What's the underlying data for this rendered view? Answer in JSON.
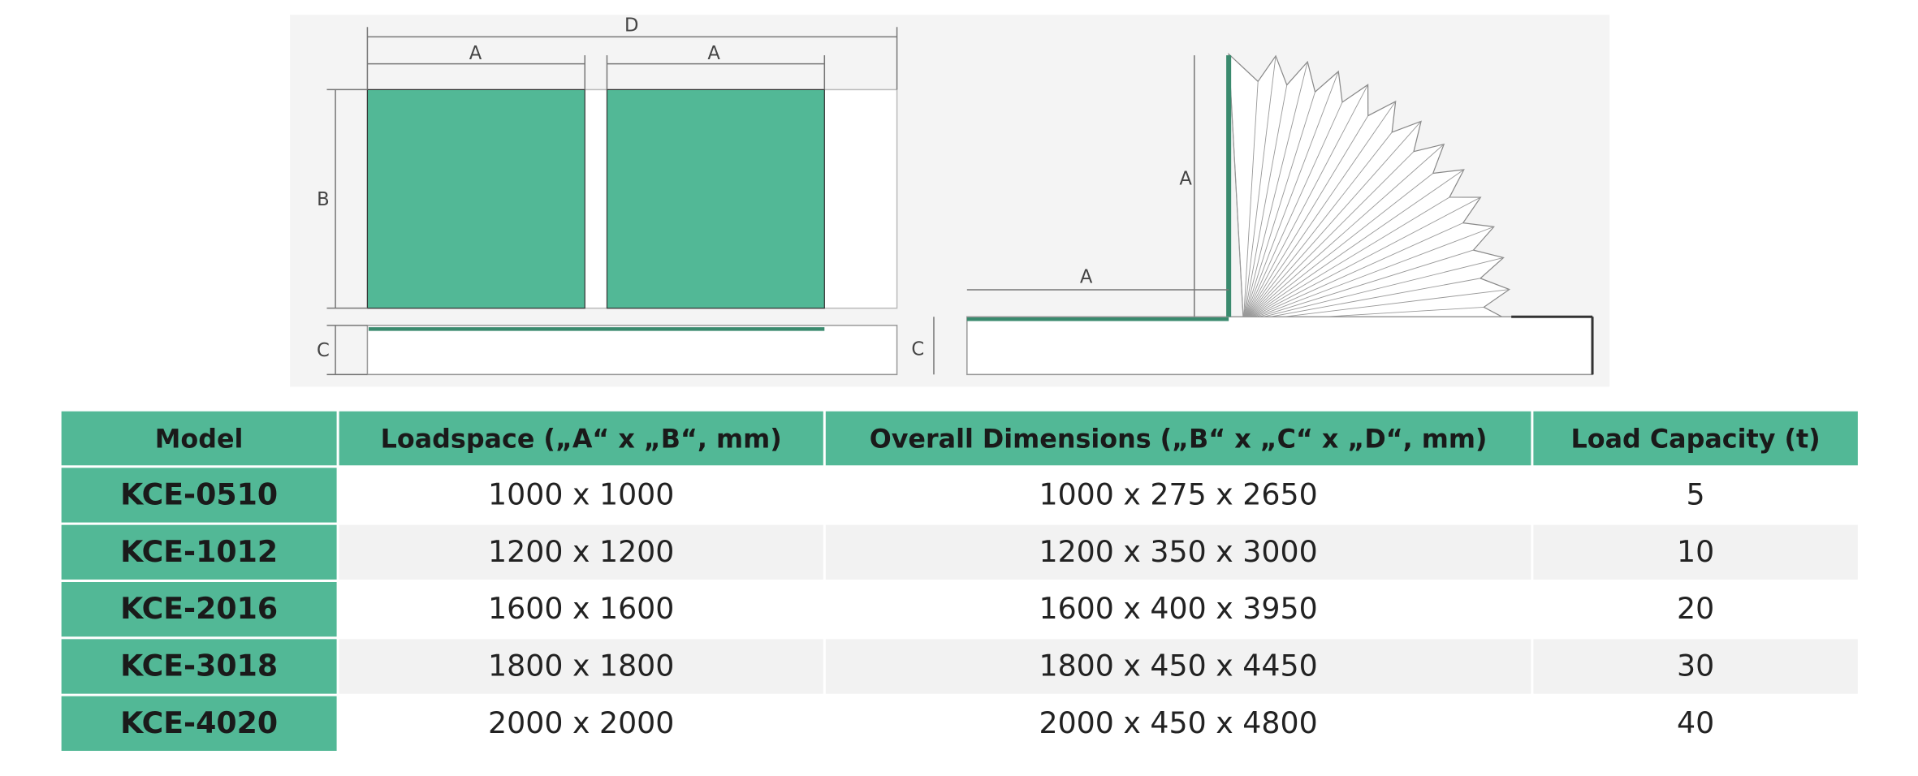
{
  "diagram": {
    "left": {
      "labels": {
        "d": "D",
        "a1": "A",
        "a2": "A",
        "b": "B",
        "c": "C"
      }
    },
    "right": {
      "labels": {
        "a_vertical": "A",
        "a_horizontal": "A",
        "c": "C"
      }
    }
  },
  "table": {
    "header": [
      "Model",
      "Loadspace („A“ x „B“, mm)",
      "Overall Dimensions („B“ x „C“ x „D“, mm)",
      "Load Capacity (t)"
    ],
    "rows": [
      [
        "KCE-0510",
        "1000 x 1000",
        "1000 x 275 x 2650",
        "5"
      ],
      [
        "KCE-1012",
        "1200 x 1200",
        "1200 x 350 x 3000",
        "10"
      ],
      [
        "KCE-2016",
        "1600 x 1600",
        "1600 x 400 x 3950",
        "20"
      ],
      [
        "KCE-3018",
        "1800 x 1800",
        "1800 x 450 x 4450",
        "30"
      ],
      [
        "KCE-4020",
        "2000 x 2000",
        "2000 x 450 x 4800",
        "40"
      ]
    ]
  }
}
